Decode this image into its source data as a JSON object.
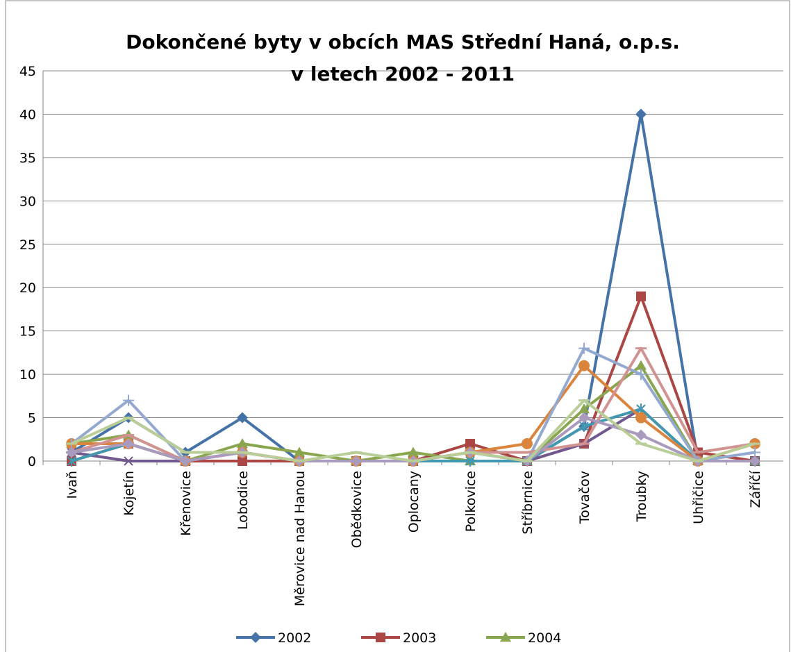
{
  "chart_data": {
    "type": "line",
    "title": "Dokončené byty v obcích MAS Střední Haná, o.p.s. v letech 2002 - 2011",
    "categories": [
      "Ivaň",
      "Kojetín",
      "Křenovice",
      "Lobodice",
      "Měrovice nad Hanou",
      "Obědkovice",
      "Oplocany",
      "Polkovice",
      "Stříbrnice",
      "Tovačov",
      "Troubky",
      "Uhřičice",
      "Záříčí"
    ],
    "series": [
      {
        "name": "2002",
        "color": "#4572a7",
        "marker": "diamond",
        "values": [
          1,
          5,
          1,
          5,
          0,
          0,
          0,
          0,
          0,
          4,
          40,
          0,
          0
        ]
      },
      {
        "name": "2003",
        "color": "#aa4643",
        "marker": "square",
        "values": [
          0,
          2,
          0,
          0,
          0,
          0,
          0,
          2,
          0,
          2,
          19,
          1,
          0
        ]
      },
      {
        "name": "2004",
        "color": "#89a54e",
        "marker": "triangle",
        "values": [
          2,
          3,
          0,
          2,
          1,
          0,
          1,
          0,
          0,
          6,
          11,
          0,
          0
        ]
      },
      {
        "color": "#71588f",
        "marker": "x",
        "values": [
          1,
          0,
          0,
          1,
          0,
          0,
          0,
          1,
          0,
          2,
          6,
          0,
          0
        ]
      },
      {
        "color": "#4198af",
        "marker": "star",
        "values": [
          0,
          2,
          0,
          1,
          0,
          0,
          0,
          0,
          0,
          4,
          6,
          0,
          0
        ]
      },
      {
        "color": "#db843d",
        "marker": "circle",
        "values": [
          2,
          2,
          0,
          1,
          0,
          0,
          0,
          1,
          2,
          11,
          5,
          0,
          2
        ]
      },
      {
        "color": "#93a9cf",
        "marker": "plus",
        "values": [
          2,
          7,
          0,
          1,
          0,
          0,
          0,
          1,
          0,
          13,
          10,
          0,
          1
        ]
      },
      {
        "color": "#d19392",
        "marker": "dash",
        "values": [
          1,
          3,
          0,
          1,
          0,
          0,
          0,
          1,
          1,
          2,
          13,
          1,
          2
        ]
      },
      {
        "color": "#a99bbd",
        "marker": "diamond",
        "values": [
          1,
          2,
          0,
          1,
          0,
          0,
          0,
          1,
          0,
          5,
          3,
          0,
          0
        ]
      },
      {
        "color": "#b9cd96",
        "marker": "dash",
        "values": [
          2,
          5,
          1,
          1,
          0,
          1,
          0,
          1,
          0,
          7,
          2,
          0,
          2
        ]
      }
    ],
    "ylim": [
      0,
      45
    ],
    "yticks": [
      0,
      5,
      10,
      15,
      20,
      25,
      30,
      35,
      40,
      45
    ],
    "grid": true
  }
}
